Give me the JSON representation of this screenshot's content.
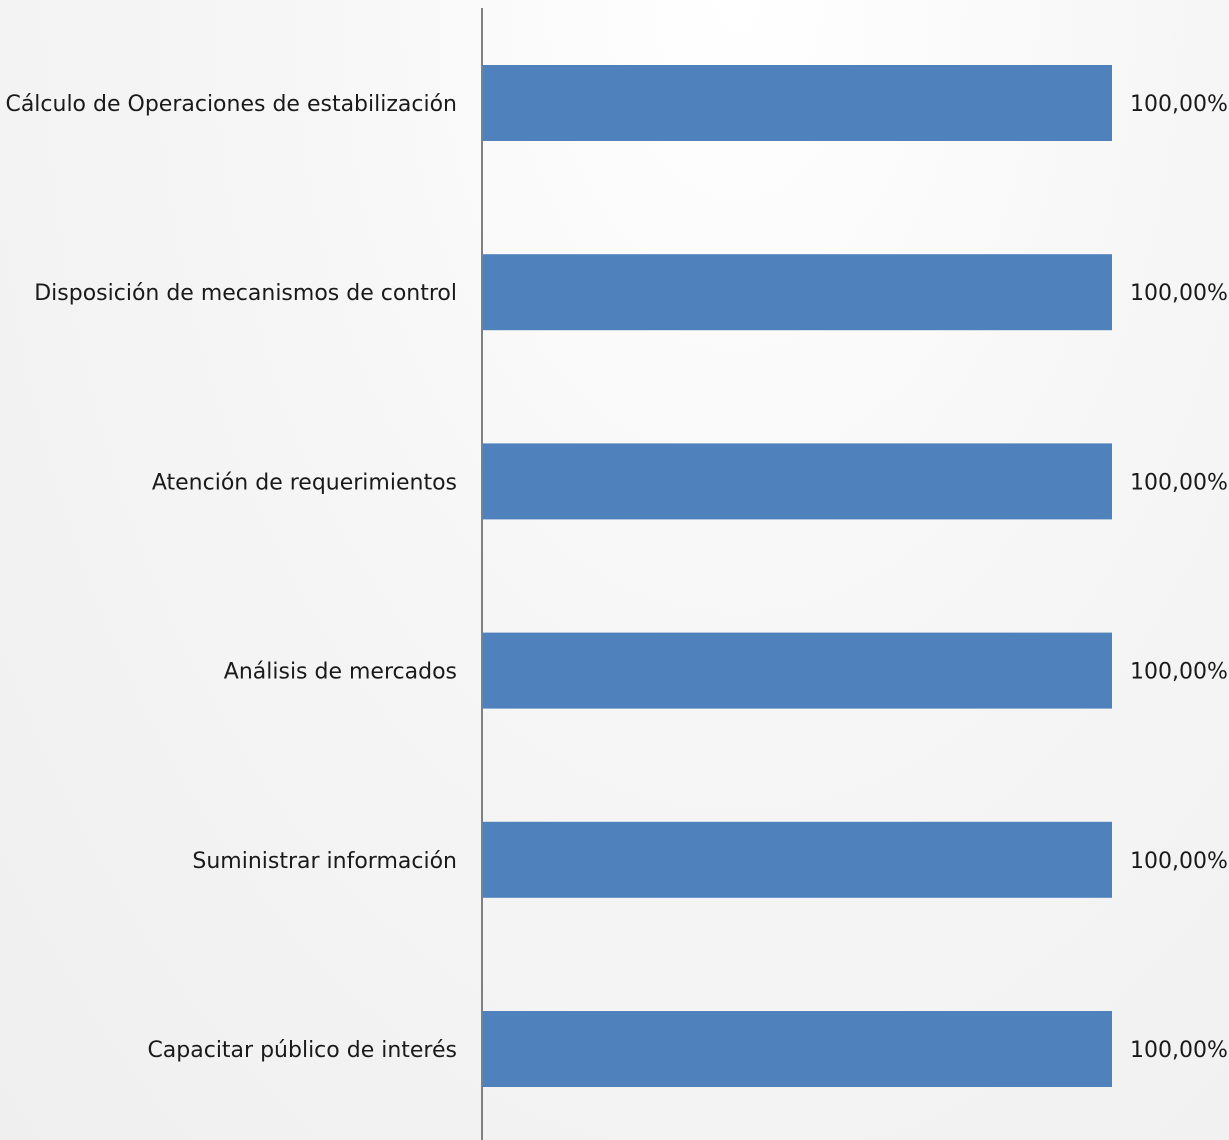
{
  "chart_data": {
    "type": "bar",
    "orientation": "horizontal",
    "title": "",
    "xlabel": "",
    "ylabel": "",
    "categories": [
      "Cálculo de Operaciones de estabilización",
      "Disposición de mecanismos de control",
      "Atención de requerimientos",
      "Análisis de mercados",
      "Suministrar información",
      "Capacitar público de interés"
    ],
    "series": [
      {
        "values": [
          100,
          100,
          100,
          100,
          100,
          100
        ],
        "value_labels": [
          "100,00%",
          "100,00%",
          "100,00%",
          "100,00%",
          "100,00%",
          "100,00%"
        ],
        "color": "#4F81BD"
      }
    ],
    "xlim": [
      0,
      100
    ],
    "grid": false,
    "legend": "none",
    "axis_color": "#808080"
  }
}
